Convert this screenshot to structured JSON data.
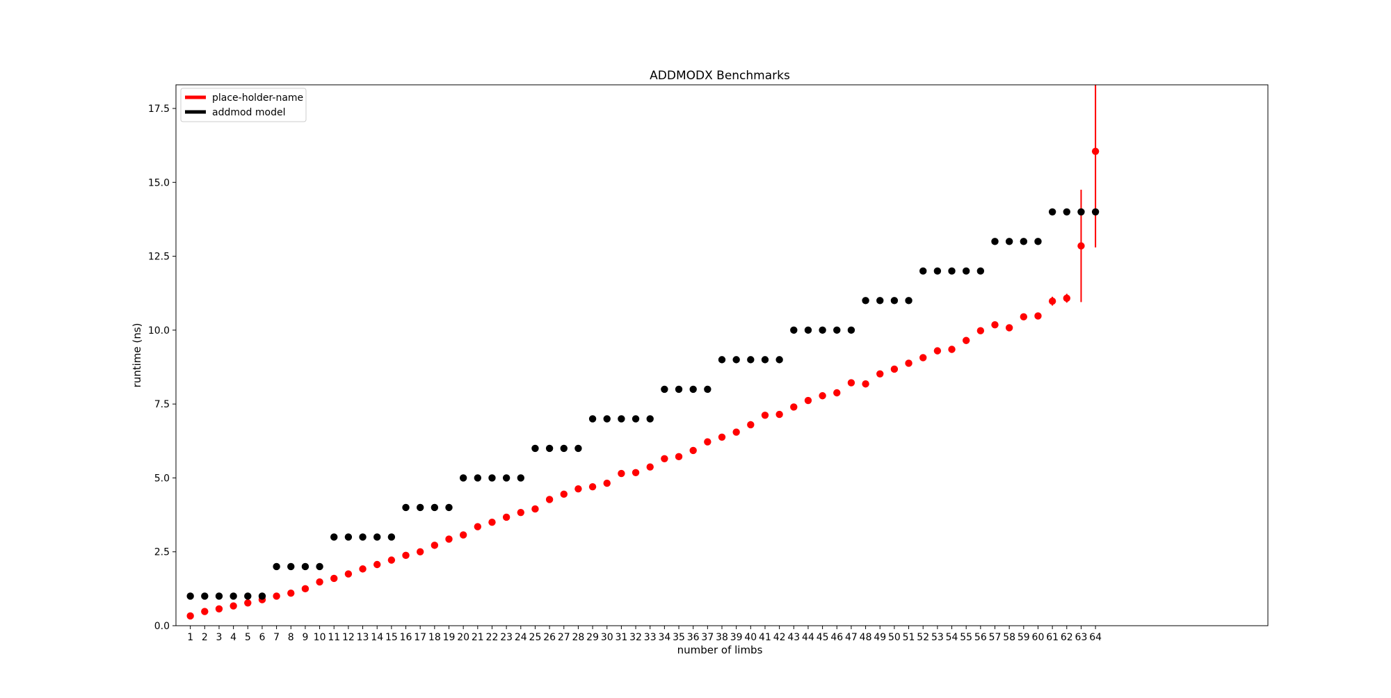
{
  "chart_data": {
    "type": "scatter",
    "title": "ADDMODX Benchmarks",
    "xlabel": "number of limbs",
    "ylabel": "runtime (ns)",
    "xlim": [
      0,
      76
    ],
    "ylim": [
      0,
      18.3
    ],
    "x_ticks": [
      1,
      2,
      3,
      4,
      5,
      6,
      7,
      8,
      9,
      10,
      11,
      12,
      13,
      14,
      15,
      16,
      17,
      18,
      19,
      20,
      21,
      22,
      23,
      24,
      25,
      26,
      27,
      28,
      29,
      30,
      31,
      32,
      33,
      34,
      35,
      36,
      37,
      38,
      39,
      40,
      41,
      42,
      43,
      44,
      45,
      46,
      47,
      48,
      49,
      50,
      51,
      52,
      53,
      54,
      55,
      56,
      57,
      58,
      59,
      60,
      61,
      62,
      63,
      64
    ],
    "y_ticks": [
      0.0,
      2.5,
      5.0,
      7.5,
      10.0,
      12.5,
      15.0,
      17.5
    ],
    "y_tick_labels": [
      "0.0",
      "2.5",
      "5.0",
      "7.5",
      "10.0",
      "12.5",
      "15.0",
      "17.5"
    ],
    "grid": false,
    "legend_position": "top-left",
    "series": [
      {
        "name": "place-holder-name",
        "color": "#ff0000",
        "x": [
          1,
          2,
          3,
          4,
          5,
          6,
          7,
          8,
          9,
          10,
          11,
          12,
          13,
          14,
          15,
          16,
          17,
          18,
          19,
          20,
          21,
          22,
          23,
          24,
          25,
          26,
          27,
          28,
          29,
          30,
          31,
          32,
          33,
          34,
          35,
          36,
          37,
          38,
          39,
          40,
          41,
          42,
          43,
          44,
          45,
          46,
          47,
          48,
          49,
          50,
          51,
          52,
          53,
          54,
          55,
          56,
          57,
          58,
          59,
          60,
          61,
          62,
          63,
          64
        ],
        "y": [
          0.33,
          0.48,
          0.57,
          0.67,
          0.77,
          0.88,
          1.0,
          1.1,
          1.25,
          1.48,
          1.6,
          1.75,
          1.92,
          2.07,
          2.22,
          2.38,
          2.5,
          2.72,
          2.93,
          3.07,
          3.35,
          3.5,
          3.67,
          3.83,
          3.95,
          4.27,
          4.45,
          4.63,
          4.7,
          4.82,
          5.15,
          5.18,
          5.37,
          5.65,
          5.72,
          5.93,
          6.22,
          6.38,
          6.55,
          6.8,
          7.12,
          7.15,
          7.4,
          7.62,
          7.78,
          7.88,
          8.22,
          8.18,
          8.52,
          8.68,
          8.88,
          9.07,
          9.3,
          9.35,
          9.65,
          9.98,
          10.18,
          10.08,
          10.45,
          10.48,
          10.98,
          11.08,
          12.85,
          16.05
        ],
        "err": [
          0,
          0,
          0,
          0,
          0,
          0,
          0,
          0,
          0,
          0,
          0,
          0,
          0,
          0,
          0,
          0,
          0,
          0,
          0,
          0,
          0,
          0,
          0,
          0,
          0,
          0,
          0,
          0,
          0,
          0,
          0,
          0,
          0,
          0,
          0,
          0,
          0,
          0,
          0,
          0.12,
          0,
          0,
          0,
          0,
          0,
          0,
          0,
          0,
          0,
          0,
          0,
          0,
          0,
          0,
          0,
          0,
          0,
          0,
          0,
          0,
          0.15,
          0.15,
          1.9,
          3.25
        ]
      },
      {
        "name": "addmod model",
        "color": "#000000",
        "x": [
          1,
          2,
          3,
          4,
          5,
          6,
          7,
          8,
          9,
          10,
          11,
          12,
          13,
          14,
          15,
          16,
          17,
          18,
          19,
          20,
          21,
          22,
          23,
          24,
          25,
          26,
          27,
          28,
          29,
          30,
          31,
          32,
          33,
          34,
          35,
          36,
          37,
          38,
          39,
          40,
          41,
          42,
          43,
          44,
          45,
          46,
          47,
          48,
          49,
          50,
          51,
          52,
          53,
          54,
          55,
          56,
          57,
          58,
          59,
          60,
          61,
          62,
          63,
          64
        ],
        "y": [
          1,
          1,
          1,
          1,
          1,
          1,
          2,
          2,
          2,
          2,
          3,
          3,
          3,
          3,
          3,
          4,
          4,
          4,
          4,
          5,
          5,
          5,
          5,
          5,
          6,
          6,
          6,
          6,
          7,
          7,
          7,
          7,
          7,
          8,
          8,
          8,
          8,
          9,
          9,
          9,
          9,
          9,
          10,
          10,
          10,
          10,
          10,
          11,
          11,
          11,
          11,
          12,
          12,
          12,
          12,
          12,
          13,
          13,
          13,
          13,
          14,
          14,
          14,
          14
        ]
      }
    ]
  }
}
